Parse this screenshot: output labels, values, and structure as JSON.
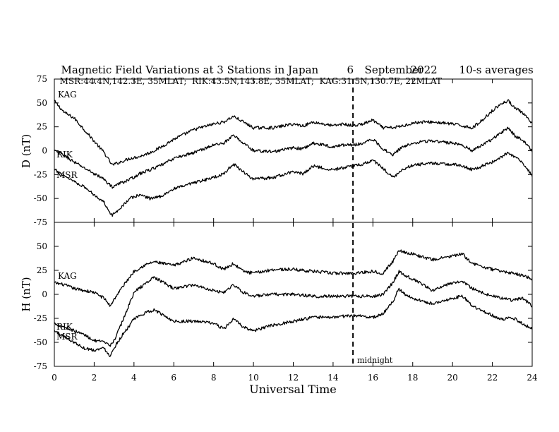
{
  "figure": {
    "title": "Magnetic Field Variations at 3 Stations in Japan",
    "day": "6",
    "month_year_a": "September",
    "month_year_b": "2022",
    "averaging": "10-s averages",
    "stations_line": "MSR:44.4N,142.3E, 35MLAT;  RIK:43.5N,143.8E, 35MLAT;  KAG:31.5N,130.7E, 22MLAT",
    "midnight_label": "midnight"
  },
  "chart_data": [
    {
      "type": "line",
      "panel": "top",
      "ylabel": "D (nT)",
      "ylim": [
        -75,
        75
      ],
      "yticks": [
        -75,
        -50,
        -25,
        0,
        25,
        50,
        75
      ],
      "xlim": [
        0,
        24
      ],
      "xticks": [
        0,
        2,
        4,
        6,
        8,
        10,
        12,
        14,
        16,
        18,
        20,
        22,
        24
      ],
      "xlabel": "",
      "marker_line_x": 15,
      "series": [
        {
          "name": "KAG",
          "x": [
            0,
            0.5,
            1,
            1.5,
            2,
            2.5,
            2.9,
            3.3,
            3.8,
            4.3,
            4.8,
            5.3,
            6,
            7,
            8,
            8.5,
            9,
            9.5,
            10,
            11,
            12,
            12.5,
            13,
            13.5,
            14,
            14.5,
            15,
            15.5,
            16,
            16.5,
            17,
            17.5,
            18,
            18.5,
            19,
            19.5,
            20,
            20.5,
            21,
            21.5,
            22,
            22.5,
            22.8,
            23.2,
            23.5,
            24
          ],
          "y": [
            52,
            40,
            34,
            22,
            10,
            -2,
            -15,
            -12,
            -8,
            -6,
            -2,
            3,
            12,
            22,
            28,
            30,
            36,
            30,
            24,
            24,
            28,
            26,
            30,
            28,
            26,
            28,
            26,
            28,
            32,
            24,
            24,
            26,
            29,
            30,
            30,
            29,
            28,
            26,
            24,
            32,
            42,
            50,
            52,
            44,
            40,
            28
          ]
        },
        {
          "name": "RIK",
          "x": [
            0,
            0.5,
            1,
            1.5,
            2,
            2.5,
            2.9,
            3.3,
            3.8,
            4.3,
            4.8,
            5.3,
            6,
            7,
            8,
            8.5,
            9,
            9.5,
            10,
            11,
            12,
            12.5,
            13,
            13.5,
            14,
            14.5,
            15,
            15.5,
            16,
            16.5,
            17,
            17.5,
            18,
            18.5,
            19,
            19.5,
            20,
            20.5,
            21,
            21.5,
            22,
            22.5,
            22.8,
            23.2,
            23.5,
            24
          ],
          "y": [
            0,
            -5,
            -12,
            -18,
            -24,
            -30,
            -38,
            -34,
            -30,
            -24,
            -20,
            -16,
            -8,
            -2,
            6,
            8,
            16,
            8,
            0,
            -1,
            3,
            2,
            8,
            6,
            4,
            6,
            6,
            8,
            12,
            2,
            -4,
            4,
            8,
            10,
            10,
            9,
            8,
            6,
            0,
            6,
            12,
            20,
            24,
            14,
            12,
            0
          ]
        },
        {
          "name": "MSR",
          "x": [
            0,
            0.5,
            1,
            1.5,
            2,
            2.5,
            2.9,
            3.3,
            3.8,
            4.3,
            4.8,
            5.3,
            6,
            7,
            8,
            8.5,
            9,
            9.5,
            10,
            11,
            12,
            12.5,
            13,
            13.5,
            14,
            14.5,
            15,
            15.5,
            16,
            16.5,
            17,
            17.5,
            18,
            18.5,
            19,
            19.5,
            20,
            20.5,
            21,
            21.5,
            22,
            22.5,
            22.8,
            23.2,
            23.5,
            24
          ],
          "y": [
            -20,
            -26,
            -32,
            -38,
            -46,
            -54,
            -68,
            -60,
            -50,
            -46,
            -50,
            -48,
            -40,
            -34,
            -28,
            -24,
            -14,
            -22,
            -30,
            -28,
            -22,
            -24,
            -16,
            -18,
            -20,
            -18,
            -16,
            -14,
            -10,
            -18,
            -28,
            -20,
            -15,
            -14,
            -13,
            -14,
            -14,
            -16,
            -20,
            -16,
            -12,
            -6,
            -2,
            -8,
            -12,
            -26
          ]
        }
      ]
    },
    {
      "type": "line",
      "panel": "bottom",
      "ylabel": "H (nT)",
      "ylim": [
        -75,
        75
      ],
      "yticks": [
        -75,
        -50,
        -25,
        0,
        25,
        50
      ],
      "xlim": [
        0,
        24
      ],
      "xticks": [
        0,
        2,
        4,
        6,
        8,
        10,
        12,
        14,
        16,
        18,
        20,
        22,
        24
      ],
      "xticklabels": [
        "0",
        "2",
        "4",
        "6",
        "8",
        "10",
        "12",
        "14",
        "16",
        "18",
        "20",
        "22",
        "24"
      ],
      "xlabel": "Universal Time",
      "marker_line_x": 15,
      "series": [
        {
          "name": "KAG",
          "x": [
            0,
            0.5,
            1,
            1.5,
            2,
            2.5,
            2.8,
            3.1,
            3.5,
            4,
            4.5,
            5,
            6,
            7,
            8,
            8.5,
            9,
            9.5,
            10,
            11,
            12,
            13,
            14,
            15,
            16,
            16.5,
            17,
            17.3,
            17.6,
            18,
            19,
            20,
            20.5,
            21,
            22,
            22.5,
            23,
            23.5,
            24
          ],
          "y": [
            12,
            10,
            6,
            4,
            2,
            -4,
            -12,
            -2,
            10,
            24,
            30,
            34,
            30,
            38,
            32,
            26,
            32,
            24,
            22,
            26,
            26,
            24,
            22,
            22,
            24,
            22,
            34,
            46,
            44,
            42,
            36,
            40,
            42,
            32,
            26,
            24,
            22,
            20,
            16
          ]
        },
        {
          "name": "RIK",
          "x": [
            0,
            0.5,
            1,
            1.5,
            2,
            2.5,
            2.8,
            3.1,
            3.5,
            4,
            4.5,
            5,
            6,
            7,
            8,
            8.5,
            9,
            9.5,
            10,
            11,
            12,
            13,
            14,
            15,
            16,
            16.5,
            17,
            17.3,
            17.6,
            18,
            19,
            20,
            20.5,
            21,
            22,
            22.5,
            23,
            23.5,
            24
          ],
          "y": [
            -30,
            -34,
            -38,
            -42,
            -48,
            -50,
            -54,
            -44,
            -24,
            2,
            10,
            18,
            6,
            10,
            4,
            2,
            10,
            2,
            -2,
            0,
            0,
            -2,
            -2,
            -2,
            -2,
            0,
            12,
            24,
            20,
            16,
            4,
            12,
            14,
            6,
            -2,
            -4,
            -6,
            -4,
            -12
          ]
        },
        {
          "name": "MSR",
          "x": [
            0,
            0.5,
            1,
            1.5,
            2,
            2.5,
            2.8,
            3.1,
            3.5,
            4,
            4.5,
            5,
            6,
            7,
            8,
            8.5,
            9,
            9.5,
            10,
            11,
            12,
            13,
            14,
            15,
            16,
            16.5,
            17,
            17.3,
            17.6,
            18,
            19,
            20,
            20.5,
            21,
            22,
            22.5,
            23,
            23.5,
            24
          ],
          "y": [
            -38,
            -44,
            -50,
            -56,
            -58,
            -56,
            -64,
            -52,
            -40,
            -26,
            -20,
            -16,
            -28,
            -28,
            -30,
            -36,
            -26,
            -34,
            -38,
            -32,
            -28,
            -24,
            -24,
            -22,
            -24,
            -20,
            -8,
            6,
            0,
            -4,
            -10,
            -4,
            -2,
            -12,
            -22,
            -26,
            -24,
            -30,
            -36
          ]
        }
      ]
    }
  ]
}
